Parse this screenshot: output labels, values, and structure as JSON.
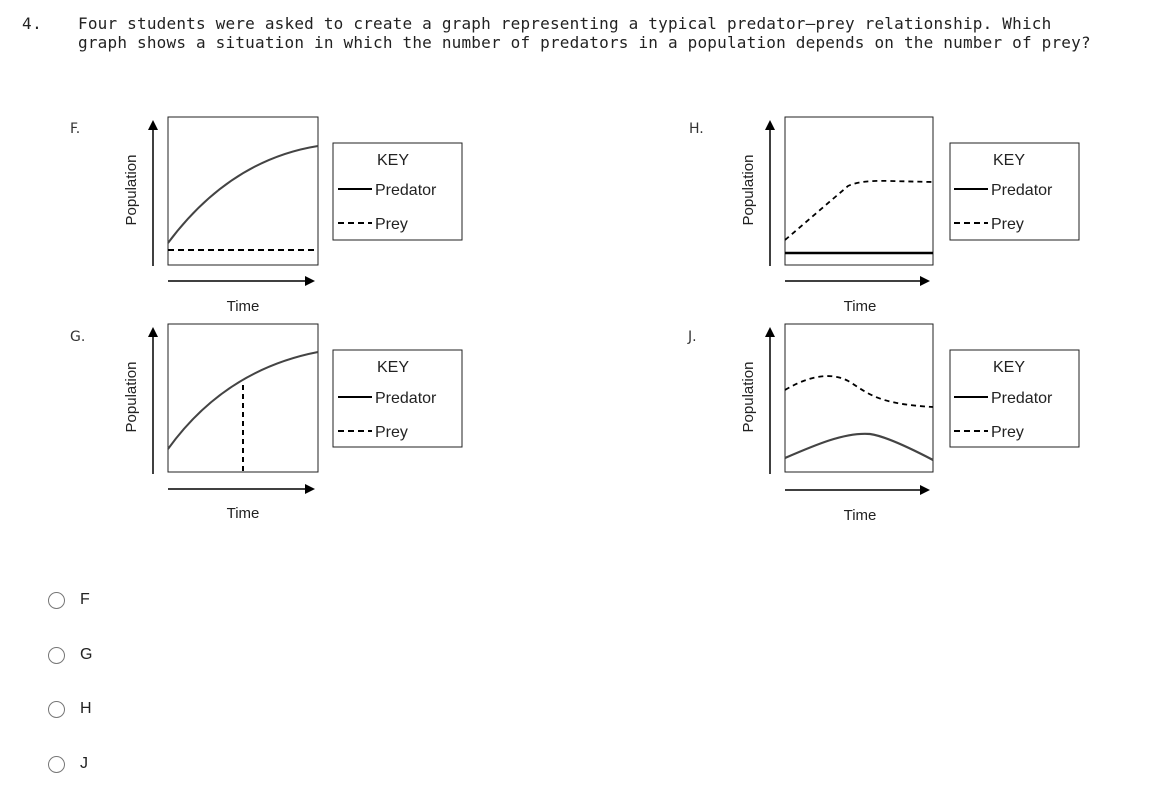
{
  "question": {
    "number": "4.",
    "text": "Four students were asked to create a graph representing a typical predator–prey relationship. Which graph shows a situation in which the number of predators in a population depends on the number of prey?"
  },
  "graphs": [
    {
      "id": "F",
      "label": "F.",
      "y_axis": "Population",
      "x_axis": "Time",
      "key": {
        "title": "KEY",
        "predator": "Predator",
        "prey": "Prey"
      }
    },
    {
      "id": "H",
      "label": "H.",
      "y_axis": "Population",
      "x_axis": "Time",
      "key": {
        "title": "KEY",
        "predator": "Predator",
        "prey": "Prey"
      }
    },
    {
      "id": "G",
      "label": "G.",
      "y_axis": "Population",
      "x_axis": "Time",
      "key": {
        "title": "KEY",
        "predator": "Predator",
        "prey": "Prey"
      }
    },
    {
      "id": "J",
      "label": "J.",
      "y_axis": "Population",
      "x_axis": "Time",
      "key": {
        "title": "KEY",
        "predator": "Predator",
        "prey": "Prey"
      }
    }
  ],
  "options": [
    {
      "label": "F",
      "selected": false
    },
    {
      "label": "G",
      "selected": false
    },
    {
      "label": "H",
      "selected": false
    },
    {
      "label": "J",
      "selected": false
    }
  ]
}
